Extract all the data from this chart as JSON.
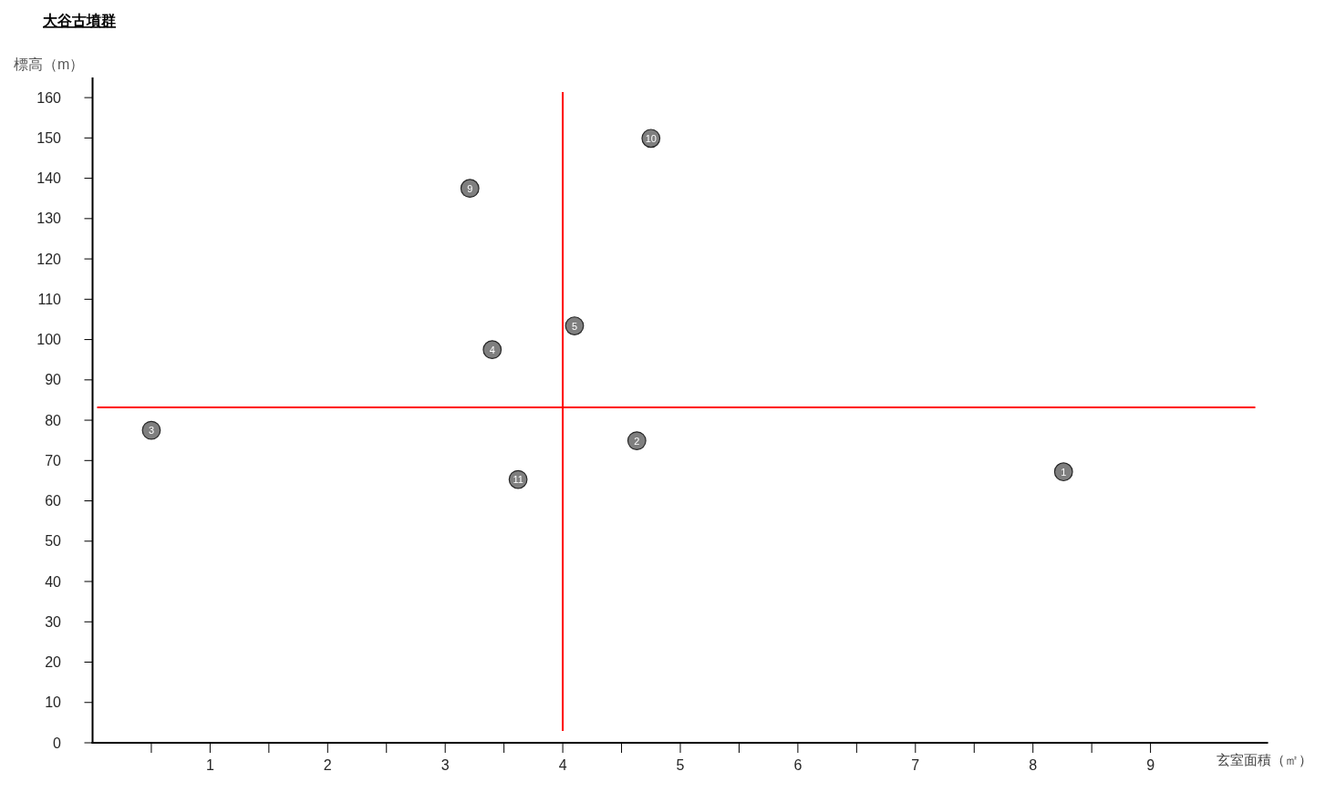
{
  "chart_data": {
    "type": "scatter",
    "title": "大谷古墳群",
    "xlabel": "玄室面積（㎡）",
    "ylabel": "標高（m）",
    "x": [
      8.26,
      4.63,
      0.5,
      3.4,
      4.1,
      3.21,
      4.75,
      3.62
    ],
    "values": [
      67.2,
      74.9,
      77.5,
      97.5,
      103.4,
      137.5,
      149.9,
      65.3
    ],
    "color": "#7f7f7f",
    "marker": "circle",
    "xlim": [
      0,
      10
    ],
    "ylim": [
      0,
      165
    ],
    "xticks": [
      {
        "value": 0.5,
        "label": null
      },
      1,
      {
        "value": 1.5,
        "label": null
      },
      2,
      {
        "value": 2.5,
        "label": null
      },
      3,
      {
        "value": 3.5,
        "label": null
      },
      4,
      {
        "value": 4.5,
        "label": null
      },
      5,
      {
        "value": 5.5,
        "label": null
      },
      6,
      {
        "value": 6.5,
        "label": null
      },
      7,
      {
        "value": 7.5,
        "label": null
      },
      8,
      {
        "value": 8.5,
        "label": null
      },
      9
    ],
    "yticks": [
      0,
      10,
      20,
      30,
      40,
      50,
      60,
      70,
      80,
      90,
      100,
      110,
      120,
      130,
      140,
      150,
      160
    ],
    "ref_lines": [
      {
        "axis": "x",
        "value": 4,
        "color": "#ff0000"
      },
      {
        "axis": "y",
        "value": 83.2,
        "color": "#ff0000"
      }
    ],
    "annotations": [
      {
        "text": "1",
        "x": 8.26,
        "y": 67.2
      },
      {
        "text": "2",
        "x": 4.63,
        "y": 74.9
      },
      {
        "text": "3",
        "x": 0.5,
        "y": 77.5
      },
      {
        "text": "4",
        "x": 3.4,
        "y": 97.5
      },
      {
        "text": "5",
        "x": 4.1,
        "y": 103.4
      },
      {
        "text": "9",
        "x": 3.21,
        "y": 137.5
      },
      {
        "text": "10",
        "x": 4.75,
        "y": 149.9
      },
      {
        "text": "11",
        "x": 3.62,
        "y": 65.3
      }
    ]
  }
}
